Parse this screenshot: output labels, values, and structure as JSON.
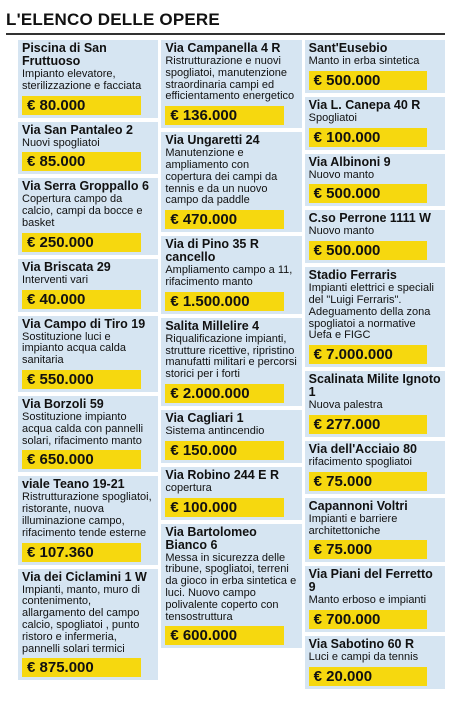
{
  "title": "L'ELENCO DELLE OPERE",
  "columns": [
    [
      {
        "place": "Piscina di San Fruttuoso",
        "description": "Impianto elevatore, sterilizzazione e facciata",
        "amount": "€ 80.000"
      },
      {
        "place": "Via San Pantaleo 2",
        "description": "Nuovi spogliatoi",
        "amount": "€ 85.000"
      },
      {
        "place": "Via Serra Groppallo 6",
        "description": "Copertura campo da calcio, campi da bocce e basket",
        "amount": "€ 250.000"
      },
      {
        "place": "Via Briscata 29",
        "description": "Interventi vari",
        "amount": "€ 40.000"
      },
      {
        "place": "Via Campo di Tiro 19",
        "description": "Sostituzione luci e impianto acqua calda sanitaria",
        "amount": "€ 550.000"
      },
      {
        "place": "Via Borzoli 59",
        "description": "Sostituzione impianto acqua calda con pannelli solari, rifacimento manto",
        "amount": "€ 650.000"
      },
      {
        "place": "viale Teano 19-21",
        "description": "Ristrutturazione spogliatoi, ristorante, nuova illuminazione campo, rifacimento tende esterne",
        "amount": "€ 107.360"
      },
      {
        "place": "Via dei Ciclamini 1 W",
        "description": "Impianti, manto, muro di contenimento, allargamento del campo calcio, spogliatoi , punto ristoro e infermeria, pannelli solari termici",
        "amount": "€ 875.000"
      }
    ],
    [
      {
        "place": "Via Campanella 4 R",
        "description": "Ristrutturazione e nuovi spogliatoi, manutenzione straordinaria campi ed efficientamento energetico",
        "amount": "€ 136.000"
      },
      {
        "place": "Via Ungaretti 24",
        "description": "Manutenzione e ampliamento con copertura dei campi da tennis e da un nuovo campo da paddle",
        "amount": "€ 470.000"
      },
      {
        "place": "Via di Pino 35 R cancello",
        "description": "Ampliamento campo a 11, rifacimento manto",
        "amount": "€ 1.500.000"
      },
      {
        "place": "Salita Millelire 4",
        "description": "Riqualificazione impianti, strutture ricettive, ripristino manufatti militari e percorsi storici per i forti",
        "amount": "€ 2.000.000"
      },
      {
        "place": "Via Cagliari 1",
        "description": "Sistema antincendio",
        "amount": "€ 150.000"
      },
      {
        "place": "Via Robino 244 E R",
        "description": "copertura",
        "amount": "€ 100.000"
      },
      {
        "place": "Via Bartolomeo Bianco 6",
        "description": "Messa in sicurezza delle tribune, spogliatoi, terreni da gioco in erba sintetica e luci. Nuovo campo polivalente coperto con tensostruttura",
        "amount": "€ 600.000"
      }
    ],
    [
      {
        "place": "Sant'Eusebio",
        "description": "Manto in erba sintetica",
        "amount": "€ 500.000"
      },
      {
        "place": "Via L. Canepa 40 R",
        "description": "Spogliatoi",
        "amount": "€ 100.000"
      },
      {
        "place": "Via Albinoni 9",
        "description": "Nuovo manto",
        "amount": "€ 500.000"
      },
      {
        "place": "C.so Perrone 1111 W",
        "description": "Nuovo manto",
        "amount": "€ 500.000"
      },
      {
        "place": "Stadio Ferraris",
        "description": "Impianti elettrici e speciali del \"Luigi Ferraris\". Adeguamento della zona spogliatoi a normative Uefa e FIGC",
        "amount": "€ 7.000.000"
      },
      {
        "place": "Scalinata Milite Ignoto 1",
        "description": "Nuova palestra",
        "amount": "€ 277.000"
      },
      {
        "place": "Via dell'Acciaio 80",
        "description": "rifacimento spogliatoi",
        "amount": "€ 75.000"
      },
      {
        "place": "Capannoni Voltri",
        "description": "Impianti e barriere architettoniche",
        "amount": "€ 75.000"
      },
      {
        "place": "Via Piani del Ferretto 9",
        "description": "Manto erboso e impianti",
        "amount": "€ 700.000"
      },
      {
        "place": "Via Sabotino 60 R",
        "description": "Luci e campi da tennis",
        "amount": "€ 20.000"
      }
    ]
  ]
}
